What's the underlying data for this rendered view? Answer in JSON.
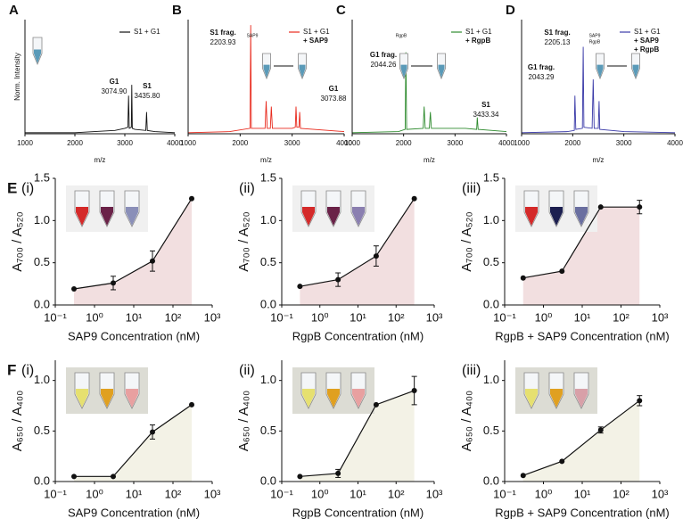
{
  "chart_data": [
    {
      "type": "spectrum",
      "panel": "A",
      "x": [
        1000,
        2000,
        2800,
        3000,
        3060,
        3075,
        3090,
        3130,
        3140,
        3150,
        3200,
        3420,
        3435,
        3450,
        3600,
        4000
      ],
      "series": [
        {
          "name": "S1 + G1",
          "color": "#111111",
          "values": [
            0.01,
            0.01,
            0.03,
            0.05,
            0.06,
            0.35,
            0.05,
            0.06,
            0.45,
            0.05,
            0.04,
            0.03,
            0.2,
            0.03,
            0.02,
            0.01
          ]
        }
      ],
      "legend_lines": [],
      "annotations": [
        {
          "label": "G1",
          "value": "3074.90"
        },
        {
          "label": "S1",
          "value": "3435.80"
        }
      ],
      "xlim": [
        1000,
        4000
      ],
      "xticks": [
        1000,
        2000,
        3000,
        4000
      ],
      "ylim": [
        0,
        1.05
      ],
      "xlabel": "m/z",
      "ylabel": "Norm. Intensity"
    },
    {
      "type": "spectrum",
      "panel": "B",
      "x": [
        1000,
        1800,
        2190,
        2204,
        2215,
        2480,
        2500,
        2520,
        2580,
        2600,
        2620,
        3000,
        3060,
        3074,
        3090,
        3130,
        3145,
        3160,
        4000
      ],
      "series": [
        {
          "name": "S1 + G1",
          "color": "#e8291c",
          "values": [
            0.01,
            0.02,
            0.05,
            1.0,
            0.05,
            0.05,
            0.3,
            0.05,
            0.05,
            0.25,
            0.05,
            0.05,
            0.06,
            0.25,
            0.06,
            0.06,
            0.2,
            0.05,
            0.02
          ]
        }
      ],
      "legend_lines": [
        "+ SAP9"
      ],
      "inset_labels": [
        "SAP9"
      ],
      "annotations": [
        {
          "label": "S1 frag.",
          "value": "2203.93"
        },
        {
          "label": "G1",
          "value": "3073.88"
        }
      ],
      "xlim": [
        1000,
        4000
      ],
      "xticks": [
        1000,
        2000,
        3000,
        4000
      ],
      "ylim": [
        0,
        1.05
      ],
      "xlabel": "m/z"
    },
    {
      "type": "spectrum",
      "panel": "C",
      "x": [
        1000,
        1900,
        2030,
        2044,
        2060,
        2380,
        2400,
        2420,
        2500,
        2520,
        2540,
        2900,
        3200,
        3420,
        3433,
        3450,
        4000
      ],
      "series": [
        {
          "name": "S1 + G1",
          "color": "#2e8b2e",
          "values": [
            0.01,
            0.02,
            0.04,
            0.75,
            0.04,
            0.05,
            0.25,
            0.05,
            0.05,
            0.2,
            0.05,
            0.05,
            0.05,
            0.04,
            0.15,
            0.04,
            0.02
          ]
        }
      ],
      "legend_lines": [
        "+ RgpB"
      ],
      "inset_labels": [
        "RgpB"
      ],
      "annotations": [
        {
          "label": "G1 frag.",
          "value": "2044.26"
        },
        {
          "label": "S1",
          "value": "3433.34"
        }
      ],
      "xlim": [
        1000,
        4000
      ],
      "xticks": [
        1000,
        2000,
        3000,
        4000
      ],
      "ylim": [
        0,
        1.05
      ],
      "xlabel": "m/z"
    },
    {
      "type": "spectrum",
      "panel": "D",
      "x": [
        1000,
        1900,
        2030,
        2043,
        2060,
        2190,
        2205,
        2220,
        2380,
        2400,
        2420,
        2500,
        2515,
        2530,
        3000,
        4000
      ],
      "series": [
        {
          "name": "S1 + G1",
          "color": "#3a3aa8",
          "values": [
            0.01,
            0.02,
            0.03,
            0.35,
            0.04,
            0.05,
            0.8,
            0.06,
            0.05,
            0.5,
            0.05,
            0.05,
            0.3,
            0.04,
            0.02,
            0.01
          ]
        }
      ],
      "legend_lines": [
        "+ SAP9",
        "+ RgpB"
      ],
      "inset_labels": [
        "SAP9",
        "RgpB"
      ],
      "annotations": [
        {
          "label": "S1 frag.",
          "value": "2205.13"
        },
        {
          "label": "G1 frag.",
          "value": "2043.29"
        }
      ],
      "xlim": [
        1000,
        4000
      ],
      "xticks": [
        1000,
        2000,
        3000,
        4000
      ],
      "ylim": [
        0,
        1.05
      ],
      "xlabel": "m/z"
    },
    {
      "type": "line",
      "panel": "E",
      "subpanel": "(i)",
      "x": [
        0.3,
        3,
        30,
        300
      ],
      "series": [
        {
          "color": "#111111",
          "fill": "#f2dfe0",
          "values": [
            0.19,
            0.26,
            0.52,
            1.26
          ],
          "errors": [
            null,
            0.08,
            0.12,
            null
          ]
        }
      ],
      "xscale": "log",
      "xlim": [
        0.1,
        1000
      ],
      "xticks": [
        {
          "value": 0.1,
          "label": "10⁻¹"
        },
        {
          "value": 1,
          "label": "10⁰"
        },
        {
          "value": 10,
          "label": "10¹"
        },
        {
          "value": 100,
          "label": "10²"
        },
        {
          "value": 1000,
          "label": "10³"
        }
      ],
      "ylim": [
        0,
        1.5
      ],
      "yticks": [
        {
          "value": 0,
          "label": "0.0"
        },
        {
          "value": 0.5,
          "label": "0.5"
        },
        {
          "value": 1,
          "label": "1.0"
        },
        {
          "value": 1.5,
          "label": "1.5"
        }
      ],
      "xlabel": "SAP9 Concentration (nM)",
      "ylabel": "A₇₀₀ / A₅₂₀"
    },
    {
      "type": "line",
      "subpanel": "(ii)",
      "x": [
        0.3,
        3,
        30,
        300
      ],
      "series": [
        {
          "color": "#111111",
          "fill": "#f2dfe0",
          "values": [
            0.22,
            0.3,
            0.58,
            1.26
          ],
          "errors": [
            null,
            0.08,
            0.12,
            null
          ]
        }
      ],
      "xscale": "log",
      "xlim": [
        0.1,
        1000
      ],
      "xticks": [
        {
          "value": 0.1,
          "label": "10⁻¹"
        },
        {
          "value": 1,
          "label": "10⁰"
        },
        {
          "value": 10,
          "label": "10¹"
        },
        {
          "value": 100,
          "label": "10²"
        },
        {
          "value": 1000,
          "label": "10³"
        }
      ],
      "ylim": [
        0,
        1.5
      ],
      "yticks": [
        {
          "value": 0,
          "label": "0.0"
        },
        {
          "value": 0.5,
          "label": "0.5"
        },
        {
          "value": 1,
          "label": "1.0"
        },
        {
          "value": 1.5,
          "label": "1.5"
        }
      ],
      "xlabel": "RgpB Concentration (nM)",
      "ylabel": "A₇₀₀ / A₅₂₀"
    },
    {
      "type": "line",
      "subpanel": "(iii)",
      "x": [
        0.3,
        3,
        30,
        300
      ],
      "series": [
        {
          "color": "#111111",
          "fill": "#f2dfe0",
          "values": [
            0.32,
            0.4,
            1.16,
            1.16
          ],
          "errors": [
            null,
            null,
            null,
            0.08
          ]
        }
      ],
      "xscale": "log",
      "xlim": [
        0.1,
        1000
      ],
      "xticks": [
        {
          "value": 0.1,
          "label": "10⁻¹"
        },
        {
          "value": 1,
          "label": "10⁰"
        },
        {
          "value": 10,
          "label": "10¹"
        },
        {
          "value": 100,
          "label": "10²"
        },
        {
          "value": 1000,
          "label": "10³"
        }
      ],
      "ylim": [
        0,
        1.5
      ],
      "yticks": [
        {
          "value": 0,
          "label": "0.0"
        },
        {
          "value": 0.5,
          "label": "0.5"
        },
        {
          "value": 1,
          "label": "1.0"
        },
        {
          "value": 1.5,
          "label": "1.5"
        }
      ],
      "xlabel": "RgpB + SAP9 Concentration (nM)",
      "ylabel": "A₇₀₀ / A₅₂₀"
    },
    {
      "type": "line",
      "panel": "F",
      "subpanel": "(i)",
      "x": [
        0.3,
        3,
        30,
        300
      ],
      "series": [
        {
          "color": "#111111",
          "fill": "#f3f2e6",
          "values": [
            0.05,
            0.05,
            0.49,
            0.76
          ],
          "errors": [
            null,
            null,
            0.07,
            null
          ]
        }
      ],
      "xscale": "log",
      "xlim": [
        0.1,
        1000
      ],
      "xticks": [
        {
          "value": 0.1,
          "label": "10⁻¹"
        },
        {
          "value": 1,
          "label": "10⁰"
        },
        {
          "value": 10,
          "label": "10¹"
        },
        {
          "value": 100,
          "label": "10²"
        },
        {
          "value": 1000,
          "label": "10³"
        }
      ],
      "ylim": [
        0,
        1.2
      ],
      "yticks": [
        {
          "value": 0,
          "label": "0.0"
        },
        {
          "value": 0.5,
          "label": "0.5"
        },
        {
          "value": 1,
          "label": "1.0"
        }
      ],
      "xlabel": "SAP9 Concentration (nM)",
      "ylabel": "A₆₅₀ / A₄₀₀"
    },
    {
      "type": "line",
      "subpanel": "(ii)",
      "x": [
        0.3,
        3,
        30,
        300
      ],
      "series": [
        {
          "color": "#111111",
          "fill": "#f3f2e6",
          "values": [
            0.05,
            0.08,
            0.76,
            0.9
          ],
          "errors": [
            null,
            0.04,
            null,
            0.14
          ]
        }
      ],
      "xscale": "log",
      "xlim": [
        0.1,
        1000
      ],
      "xticks": [
        {
          "value": 0.1,
          "label": "10⁻¹"
        },
        {
          "value": 1,
          "label": "10⁰"
        },
        {
          "value": 10,
          "label": "10¹"
        },
        {
          "value": 100,
          "label": "10²"
        },
        {
          "value": 1000,
          "label": "10³"
        }
      ],
      "ylim": [
        0,
        1.2
      ],
      "yticks": [
        {
          "value": 0,
          "label": "0.0"
        },
        {
          "value": 0.5,
          "label": "0.5"
        },
        {
          "value": 1,
          "label": "1.0"
        }
      ],
      "xlabel": "RgpB Concentration (nM)",
      "ylabel": "A₆₅₀ / A₄₀₀"
    },
    {
      "type": "line",
      "subpanel": "(iii)",
      "x": [
        0.3,
        3,
        30,
        300
      ],
      "series": [
        {
          "color": "#111111",
          "fill": "#f3f2e6",
          "values": [
            0.06,
            0.2,
            0.51,
            0.8
          ],
          "errors": [
            null,
            null,
            0.03,
            0.05
          ]
        }
      ],
      "xscale": "log",
      "xlim": [
        0.1,
        1000
      ],
      "xticks": [
        {
          "value": 0.1,
          "label": "10⁻¹"
        },
        {
          "value": 1,
          "label": "10⁰"
        },
        {
          "value": 10,
          "label": "10¹"
        },
        {
          "value": 100,
          "label": "10²"
        },
        {
          "value": 1000,
          "label": "10³"
        }
      ],
      "ylim": [
        0,
        1.2
      ],
      "yticks": [
        {
          "value": 0,
          "label": "0.0"
        },
        {
          "value": 0.5,
          "label": "0.5"
        },
        {
          "value": 1,
          "label": "1.0"
        }
      ],
      "xlabel": "RgpB + SAP9 Concentration (nM)",
      "ylabel": "A₆₅₀ / A₄₀₀"
    }
  ]
}
